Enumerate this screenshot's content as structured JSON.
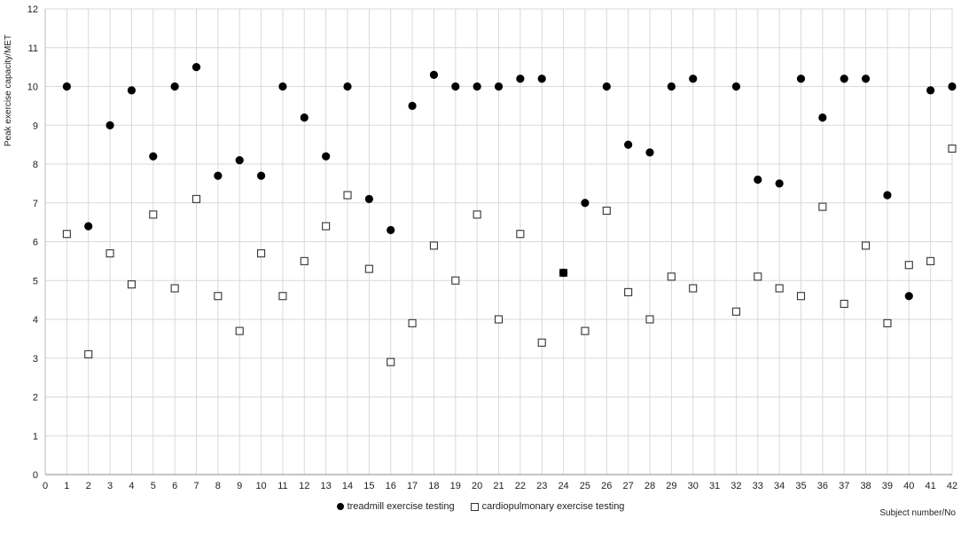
{
  "chart_data": {
    "type": "scatter",
    "title": "",
    "xlabel": "Subject number/No",
    "ylabel": "Peak exercise capacity/MET",
    "xlim": [
      0,
      42
    ],
    "ylim": [
      0,
      12
    ],
    "x_ticks": [
      0,
      1,
      2,
      3,
      4,
      5,
      6,
      7,
      8,
      9,
      10,
      11,
      12,
      13,
      14,
      15,
      16,
      17,
      18,
      19,
      20,
      21,
      22,
      23,
      24,
      25,
      26,
      27,
      28,
      29,
      30,
      31,
      32,
      33,
      34,
      35,
      36,
      37,
      38,
      39,
      40,
      41,
      42
    ],
    "y_ticks": [
      0,
      1,
      2,
      3,
      4,
      5,
      6,
      7,
      8,
      9,
      10,
      11,
      12
    ],
    "grid": true,
    "legend_position": "bottom",
    "series": [
      {
        "name": "treadmill exercise testing",
        "marker": "filled-circle",
        "color": "#000000",
        "points": [
          [
            1,
            10.0
          ],
          [
            2,
            6.4
          ],
          [
            3,
            9.0
          ],
          [
            4,
            9.9
          ],
          [
            5,
            8.2
          ],
          [
            6,
            10.0
          ],
          [
            7,
            10.5
          ],
          [
            8,
            7.7
          ],
          [
            9,
            8.1
          ],
          [
            10,
            7.7
          ],
          [
            11,
            10.0
          ],
          [
            12,
            9.2
          ],
          [
            13,
            8.2
          ],
          [
            14,
            10.0
          ],
          [
            15,
            7.1
          ],
          [
            16,
            6.3
          ],
          [
            17,
            9.5
          ],
          [
            18,
            10.3
          ],
          [
            19,
            10.0
          ],
          [
            20,
            10.0
          ],
          [
            21,
            10.0
          ],
          [
            22,
            10.2
          ],
          [
            23,
            10.2
          ],
          [
            24,
            5.2
          ],
          [
            25,
            7.0
          ],
          [
            26,
            10.0
          ],
          [
            27,
            8.5
          ],
          [
            28,
            8.3
          ],
          [
            29,
            10.0
          ],
          [
            30,
            10.2
          ],
          [
            32,
            10.0
          ],
          [
            33,
            7.6
          ],
          [
            34,
            7.5
          ],
          [
            35,
            10.2
          ],
          [
            36,
            9.2
          ],
          [
            37,
            10.2
          ],
          [
            38,
            10.2
          ],
          [
            39,
            7.2
          ],
          [
            40,
            4.6
          ],
          [
            41,
            9.9
          ],
          [
            42,
            10.0
          ]
        ]
      },
      {
        "name": "cardiopulmonary exercise testing",
        "marker": "open-square",
        "color": "#333333",
        "points": [
          [
            1,
            6.2
          ],
          [
            2,
            3.1
          ],
          [
            3,
            5.7
          ],
          [
            4,
            4.9
          ],
          [
            5,
            6.7
          ],
          [
            6,
            4.8
          ],
          [
            7,
            7.1
          ],
          [
            8,
            4.6
          ],
          [
            9,
            3.7
          ],
          [
            10,
            5.7
          ],
          [
            11,
            4.6
          ],
          [
            12,
            5.5
          ],
          [
            13,
            6.4
          ],
          [
            14,
            7.2
          ],
          [
            15,
            5.3
          ],
          [
            16,
            2.9
          ],
          [
            17,
            3.9
          ],
          [
            18,
            5.9
          ],
          [
            19,
            5.0
          ],
          [
            20,
            6.7
          ],
          [
            21,
            4.0
          ],
          [
            22,
            6.2
          ],
          [
            23,
            3.4
          ],
          [
            24,
            5.2
          ],
          [
            25,
            3.7
          ],
          [
            26,
            6.8
          ],
          [
            27,
            4.7
          ],
          [
            28,
            4.0
          ],
          [
            29,
            5.1
          ],
          [
            30,
            4.8
          ],
          [
            32,
            4.2
          ],
          [
            33,
            5.1
          ],
          [
            34,
            4.8
          ],
          [
            35,
            4.6
          ],
          [
            36,
            6.9
          ],
          [
            37,
            4.4
          ],
          [
            38,
            5.9
          ],
          [
            39,
            3.9
          ],
          [
            40,
            5.4
          ],
          [
            41,
            5.5
          ],
          [
            42,
            8.4
          ]
        ]
      }
    ]
  }
}
